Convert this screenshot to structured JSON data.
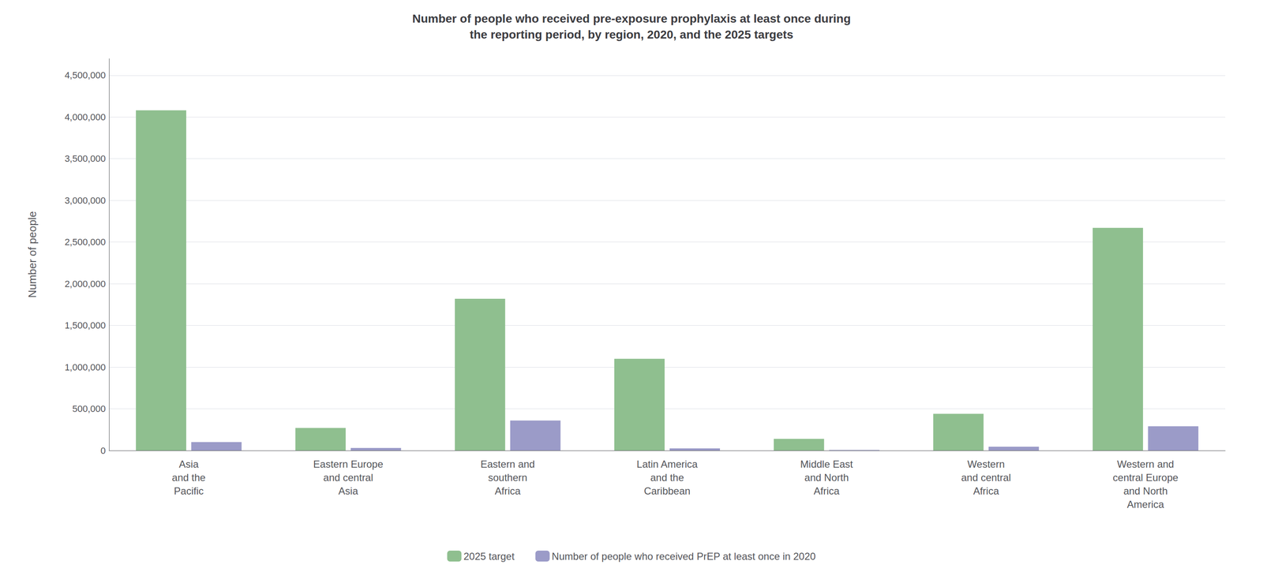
{
  "chart_data": {
    "type": "bar",
    "title": "Number of people who received pre-exposure prophylaxis at least once during\nthe reporting period, by region, 2020, and the 2025 targets",
    "ylabel": "Number of people",
    "categories": [
      "Asia\nand the\nPacific",
      "Eastern Europe\nand central\nAsia",
      "Eastern and\nsouthern\nAfrica",
      "Latin America\nand the\nCaribbean",
      "Middle East\nand North\nAfrica",
      "Western\nand central\nAfrica",
      "Western and\ncentral Europe\nand North\nAmerica"
    ],
    "series": [
      {
        "name": "2025 target",
        "color": "#8fbf8f",
        "values": [
          4080000,
          270000,
          1820000,
          1100000,
          140000,
          440000,
          2670000
        ]
      },
      {
        "name": "Number of people who received PrEP at least once in 2020",
        "color": "#9b9bc8",
        "values": [
          100000,
          30000,
          360000,
          25000,
          5000,
          45000,
          290000
        ]
      }
    ],
    "ylim": [
      0,
      4700000
    ],
    "yticks": [
      0,
      {
        "value": 500000,
        "label": "500,000"
      },
      {
        "value": 1000000,
        "label": "1,000,000"
      },
      {
        "value": 1500000,
        "label": "1,500,000"
      },
      {
        "value": 2000000,
        "label": "2,000,000"
      },
      {
        "value": 2500000,
        "label": "2,500,000"
      },
      {
        "value": 3000000,
        "label": "3,000,000"
      },
      {
        "value": 3500000,
        "label": "3,500,000"
      },
      {
        "value": 4000000,
        "label": "4,000,000"
      },
      {
        "value": 4500000,
        "label": "4,500,000"
      }
    ],
    "grid": true,
    "legend": "bottom"
  }
}
